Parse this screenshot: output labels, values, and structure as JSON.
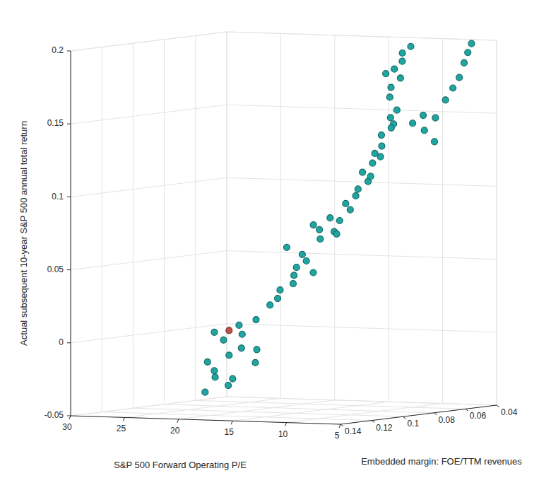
{
  "chart_data": {
    "type": "scatter3d",
    "x_label": "S&P 500 Forward Operating P/E",
    "y_label": "Embedded margin: FOE/TTM revenues",
    "z_label": "Actual subsequent 10-year S&P 500 annual total return",
    "xlim": [
      5,
      30
    ],
    "xticks": [
      5,
      10,
      15,
      20,
      25,
      30
    ],
    "ylim": [
      0.04,
      0.14
    ],
    "yticks": [
      0.04,
      0.06,
      0.08,
      0.1,
      0.12,
      0.14
    ],
    "zlim": [
      -0.05,
      0.2
    ],
    "zticks": [
      -0.05,
      0,
      0.05,
      0.1,
      0.15,
      0.2
    ],
    "grid": true,
    "series": [
      {
        "color": "#21a5a0",
        "x": [
          25.5,
          26.0,
          25.0,
          24.5,
          24.0,
          23.5,
          23.0,
          24.8,
          22.5,
          22.0,
          23.8,
          21.5,
          22.8,
          21.0,
          25.8,
          20.5,
          20.0,
          19.5,
          19.0,
          18.5,
          18.0,
          19.2,
          17.8,
          18.8,
          17.5,
          17.0,
          16.5,
          16.0,
          15.8,
          15.2,
          14.8,
          16.2,
          14.5,
          17.2,
          14.0,
          13.5,
          13.0,
          12.8,
          12.3,
          12.0,
          13.2,
          11.8,
          11.3,
          10.9,
          10.5,
          10.2,
          9.9,
          11.0,
          9.4,
          9.0,
          8.7,
          8.4,
          8.1,
          7.8,
          7.6,
          8.9,
          9.6,
          9.2,
          8.8,
          8.5,
          8.0,
          7.6,
          7.3,
          7.0,
          6.8,
          6.6,
          8.3
        ],
        "y": [
          0.085,
          0.08,
          0.082,
          0.086,
          0.08,
          0.084,
          0.079,
          0.078,
          0.082,
          0.077,
          0.075,
          0.08,
          0.086,
          0.083,
          0.077,
          0.078,
          0.075,
          0.08,
          0.073,
          0.077,
          0.072,
          0.07,
          0.076,
          0.079,
          0.071,
          0.07,
          0.074,
          0.068,
          0.072,
          0.07,
          0.066,
          0.065,
          0.071,
          0.073,
          0.068,
          0.07,
          0.067,
          0.072,
          0.069,
          0.066,
          0.064,
          0.071,
          0.07,
          0.073,
          0.068,
          0.072,
          0.07,
          0.066,
          0.078,
          0.08,
          0.076,
          0.082,
          0.079,
          0.081,
          0.077,
          0.084,
          0.062,
          0.058,
          0.06,
          0.055,
          0.052,
          0.05,
          0.048,
          0.047,
          0.046,
          0.045,
          0.057
        ],
        "z": [
          -0.04,
          -0.02,
          -0.03,
          -0.025,
          -0.015,
          -0.035,
          -0.01,
          -0.005,
          0.0,
          -0.02,
          0.005,
          0.01,
          -0.03,
          -0.01,
          0.0,
          0.02,
          0.03,
          0.025,
          0.04,
          0.035,
          0.05,
          0.045,
          0.055,
          0.06,
          0.042,
          0.065,
          0.072,
          0.07,
          0.08,
          0.078,
          0.085,
          0.068,
          0.09,
          0.075,
          0.095,
          0.1,
          0.105,
          0.112,
          0.118,
          0.122,
          0.108,
          0.125,
          0.13,
          0.138,
          0.145,
          0.15,
          0.155,
          0.142,
          0.165,
          0.172,
          0.178,
          0.185,
          0.19,
          0.196,
          0.2,
          0.182,
          0.145,
          0.15,
          0.14,
          0.148,
          0.16,
          0.168,
          0.175,
          0.185,
          0.192,
          0.198,
          0.132
        ]
      },
      {
        "color": "#c0504d",
        "x": [
          24.0
        ],
        "y": [
          0.08
        ],
        "z": [
          0.002
        ]
      }
    ]
  }
}
